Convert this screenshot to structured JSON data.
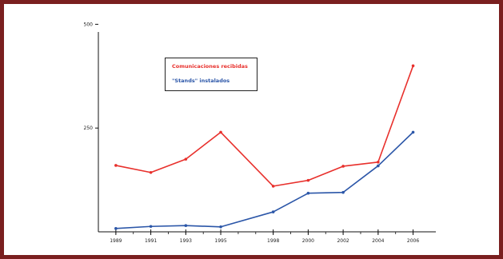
{
  "chart_data": {
    "type": "line",
    "title": "",
    "xlabel": "",
    "ylabel": "",
    "x": [
      1989,
      1991,
      1993,
      1995,
      1998,
      2000,
      2002,
      2004,
      2006
    ],
    "x_ticks": [
      1989,
      1991,
      1993,
      1995,
      1998,
      2000,
      2002,
      2004,
      2006
    ],
    "y_ticks": [
      250,
      500
    ],
    "ylim": [
      0,
      520
    ],
    "grid": false,
    "legend_position": "upper-left inside plot",
    "series": [
      {
        "name": "Comunicaciones recibidas",
        "color": "#e8302c",
        "values": [
          160,
          143,
          175,
          240,
          110,
          124,
          158,
          168,
          400
        ]
      },
      {
        "name": "\"Stands\" instalados",
        "color": "#2b56a8",
        "values": [
          8,
          13,
          15,
          12,
          48,
          93,
          95,
          159,
          240
        ]
      }
    ]
  }
}
